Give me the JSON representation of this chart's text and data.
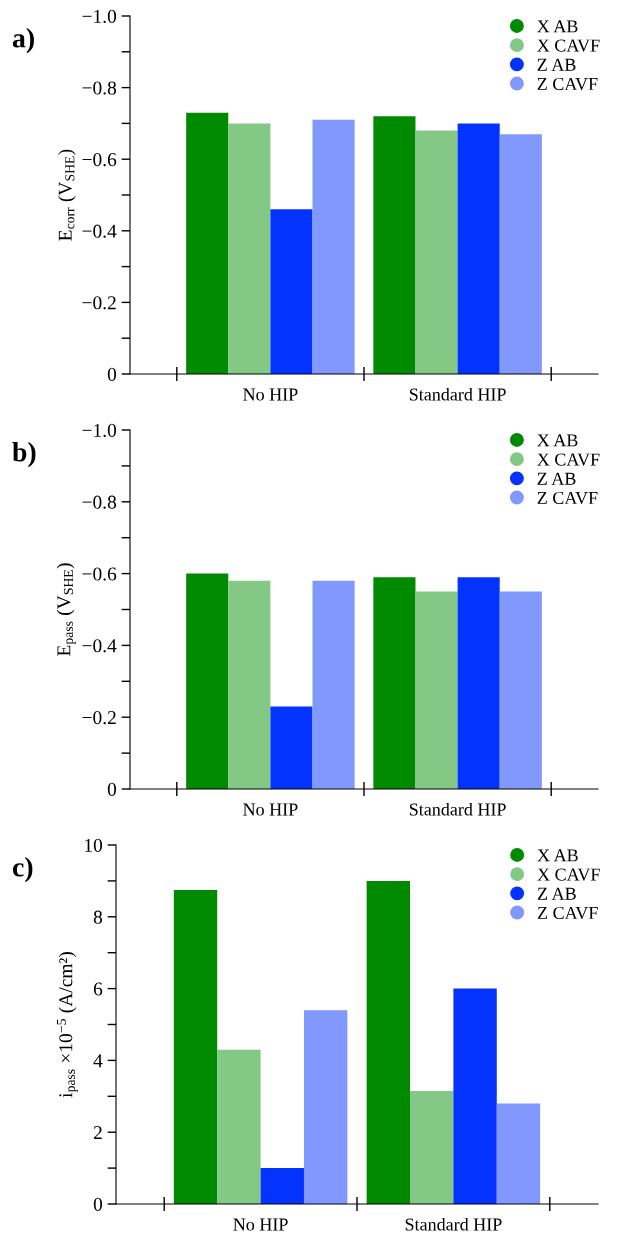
{
  "chart_data": [
    {
      "type": "bar",
      "title": "a)",
      "ylabel": "E$_{corr}$ (V$_{SHE}$)",
      "categories": [
        "No HIP",
        "Standard HIP"
      ],
      "ylim": [
        0,
        -1.0
      ],
      "yticks": [
        {
          "value": -1.0,
          "label": "−1.0"
        },
        {
          "value": -0.8,
          "label": "−0.8"
        },
        {
          "value": -0.6,
          "label": "−0.6"
        },
        {
          "value": -0.4,
          "label": "−0.4"
        },
        {
          "value": -0.2,
          "label": "−0.2"
        },
        0
      ],
      "legend": "top right",
      "marker": "circle",
      "grid": false,
      "series": [
        {
          "name": "X AB",
          "color": "#008a00",
          "values": [
            -0.73,
            -0.72
          ]
        },
        {
          "name": "X CAVF",
          "color": "#83c884",
          "values": [
            -0.7,
            -0.68
          ]
        },
        {
          "name": "Z AB",
          "color": "#0433ff",
          "values": [
            -0.46,
            -0.7
          ]
        },
        {
          "name": "Z CAVF",
          "color": "#8198fe",
          "values": [
            -0.71,
            -0.67
          ]
        }
      ]
    },
    {
      "type": "bar",
      "title": "b)",
      "ylabel": "E$_{pass}$ (V$_{SHE}$)",
      "categories": [
        "No HIP",
        "Standard HIP"
      ],
      "ylim": [
        0,
        -1.0
      ],
      "yticks": [
        {
          "value": -1.0,
          "label": "−1.0"
        },
        {
          "value": -0.8,
          "label": "−0.8"
        },
        {
          "value": -0.6,
          "label": "−0.6"
        },
        {
          "value": -0.4,
          "label": "−0.4"
        },
        {
          "value": -0.2,
          "label": "−0.2"
        },
        0
      ],
      "legend": "top right",
      "marker": "circle",
      "grid": false,
      "series": [
        {
          "name": "X AB",
          "color": "#008a00",
          "values": [
            -0.6,
            -0.59
          ]
        },
        {
          "name": "X CAVF",
          "color": "#83c884",
          "values": [
            -0.58,
            -0.55
          ]
        },
        {
          "name": "Z AB",
          "color": "#0433ff",
          "values": [
            -0.23,
            -0.59
          ]
        },
        {
          "name": "Z CAVF",
          "color": "#8198fe",
          "values": [
            -0.58,
            -0.55
          ]
        }
      ]
    },
    {
      "type": "bar",
      "title": "c)",
      "ylabel": "i$_{pass}$ ×10$^{−5}$ (A/cm²)",
      "categories": [
        "No HIP",
        "Standard HIP"
      ],
      "ylim": [
        0,
        10
      ],
      "yticks": [
        0,
        2,
        4,
        6,
        8,
        10
      ],
      "legend": "top right",
      "marker": "circle",
      "grid": false,
      "series": [
        {
          "name": "X AB",
          "color": "#008a00",
          "values": [
            8.75,
            9.0
          ]
        },
        {
          "name": "X CAVF",
          "color": "#83c884",
          "values": [
            4.3,
            3.15
          ]
        },
        {
          "name": "Z AB",
          "color": "#0433ff",
          "values": [
            1.0,
            6.0
          ]
        },
        {
          "name": "Z CAVF",
          "color": "#8198fe",
          "values": [
            5.4,
            2.8
          ]
        }
      ]
    }
  ]
}
